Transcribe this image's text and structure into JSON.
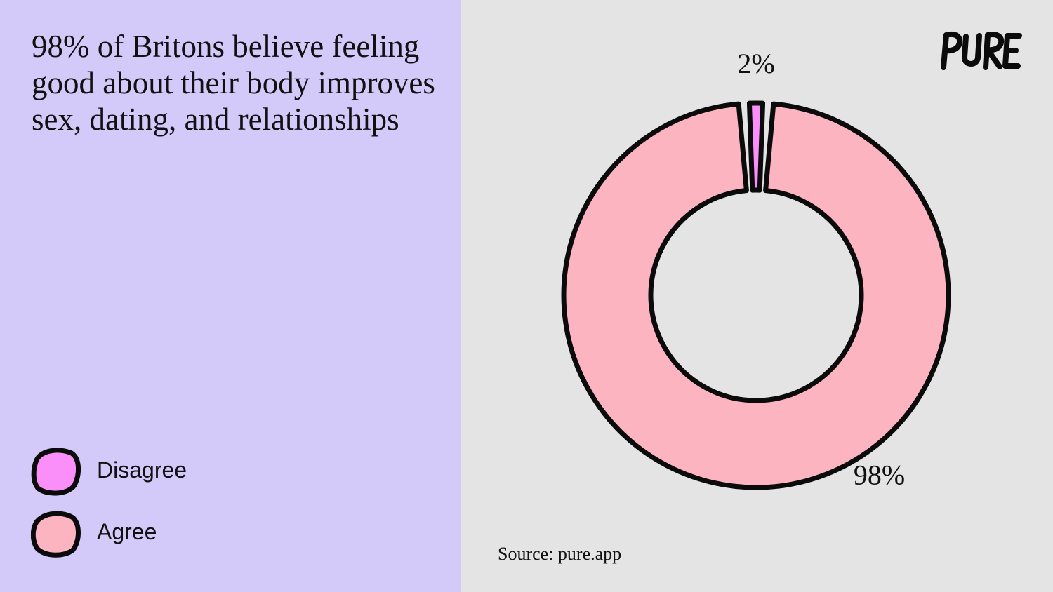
{
  "title": "98% of Britons believe feeling good about their body improves sex, dating, and relationships",
  "logo": {
    "text": "PURE",
    "icon": "pure-wordmark"
  },
  "source": "Source: pure.app",
  "colors": {
    "left_panel": "#d3cafa",
    "right_panel": "#e4e4e4",
    "disagree": "#fb8ffa",
    "agree": "#fdb4c1",
    "outline": "#0b0b0b"
  },
  "legend": [
    {
      "label": "Disagree",
      "color": "#fb8ffa"
    },
    {
      "label": "Agree",
      "color": "#fdb4c1"
    }
  ],
  "chart_data": {
    "type": "pie",
    "style": "donut",
    "title": "98% of Britons believe feeling good about their body improves sex, dating, and relationships",
    "categories": [
      "Disagree",
      "Agree"
    ],
    "values": [
      2,
      98
    ],
    "labels": [
      "2%",
      "98%"
    ],
    "colors": [
      "#fb8ffa",
      "#fdb4c1"
    ],
    "legend_position": "bottom-left",
    "start": "top"
  }
}
